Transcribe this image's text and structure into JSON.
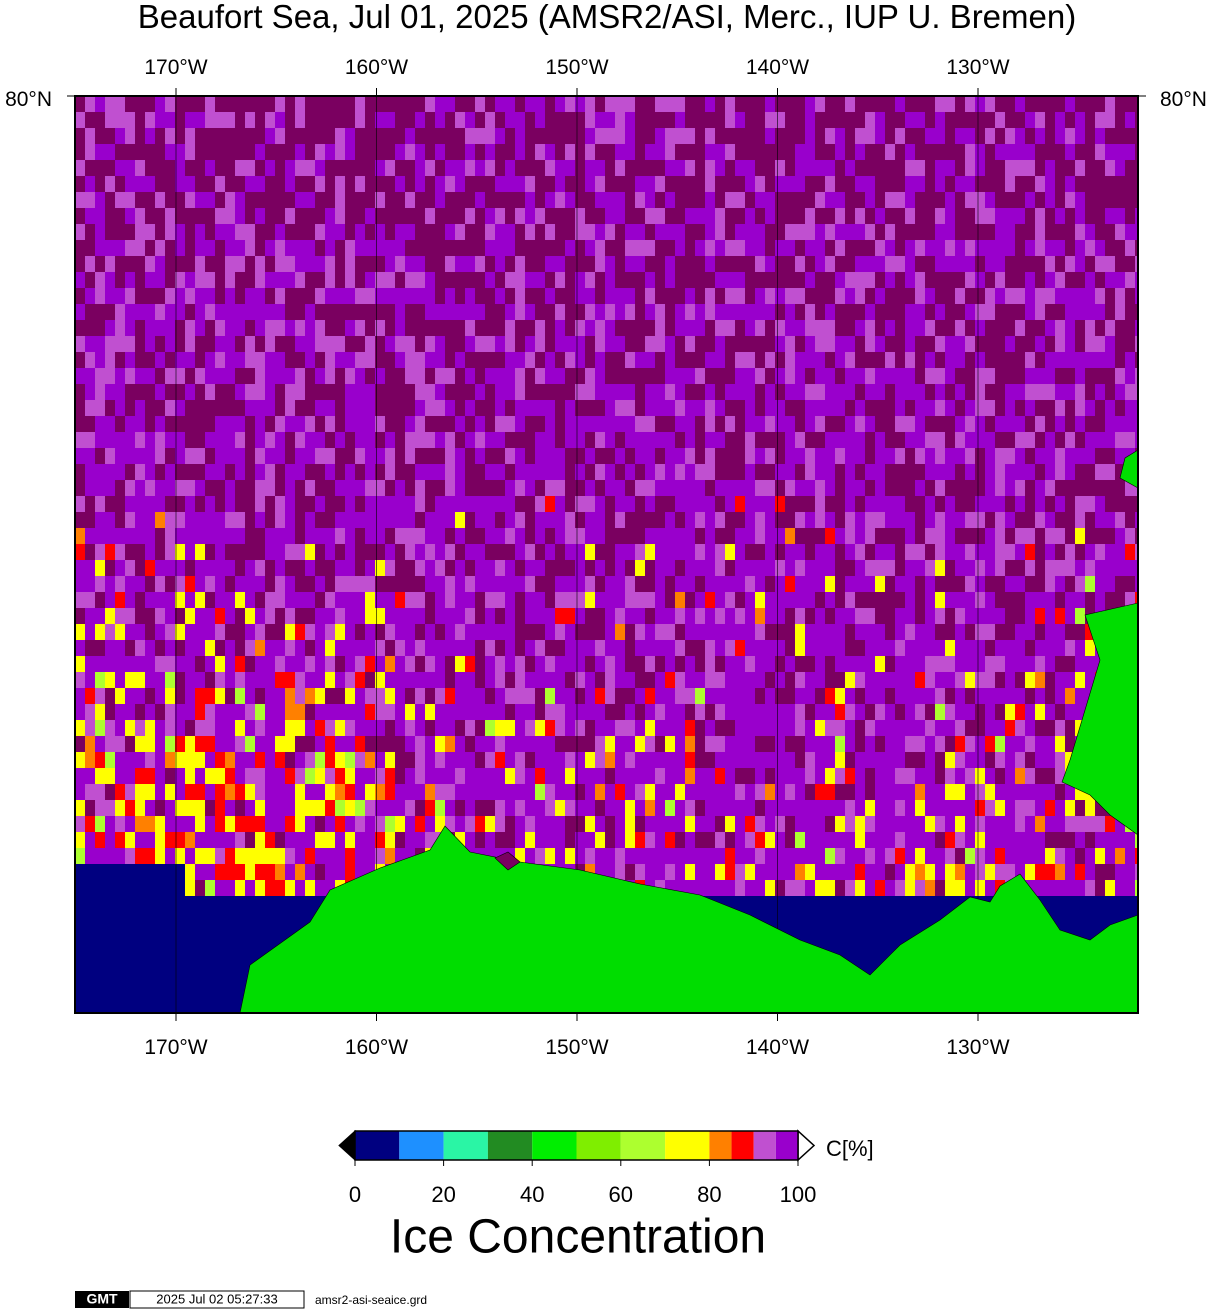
{
  "title": "Beaufort Sea, Jul 01, 2025 (AMSR2/ASI, Merc., IUP U. Bremen)",
  "map": {
    "lon_labels": [
      "170°W",
      "160°W",
      "150°W",
      "140°W",
      "130°W"
    ],
    "lat_label": "80°N",
    "land_color": "#00dd00",
    "water_color": "#000080"
  },
  "colorbar": {
    "levels": [
      0,
      10,
      20,
      30,
      40,
      50,
      60,
      70,
      80,
      85,
      90,
      95,
      100
    ],
    "colors": [
      "#000080",
      "#1e90ff",
      "#2af5a5",
      "#228b22",
      "#00ee00",
      "#7fee00",
      "#adff2f",
      "#ffff00",
      "#ff8000",
      "#ff0000",
      "#c050d0",
      "#9900cc"
    ],
    "ticks": [
      0,
      20,
      40,
      60,
      80,
      100
    ],
    "unit": "C[%]",
    "title": "Ice Concentration"
  },
  "footer": {
    "logo": "GMT",
    "timestamp": "2025 Jul 02 05:27:33",
    "file": "amsr2-asi-seaice.grd"
  }
}
